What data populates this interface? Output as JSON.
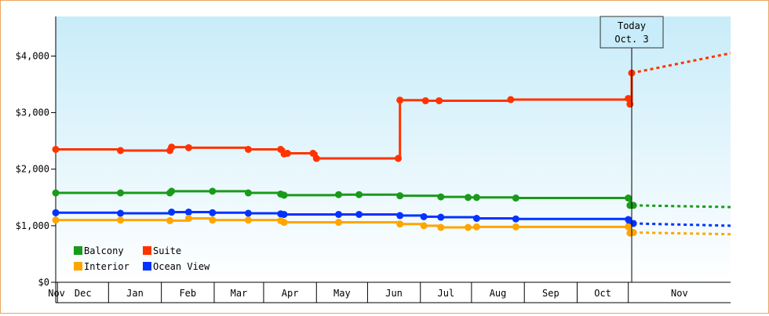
{
  "chart_data": {
    "type": "line",
    "y_ticks": [
      "$0",
      "$1,000",
      "$2,000",
      "$3,000",
      "$4,000"
    ],
    "y_tick_values": [
      0,
      1000,
      2000,
      3000,
      4000
    ],
    "ylim": [
      0,
      4700
    ],
    "month_labels": [
      "Nov",
      "Dec",
      "Jan",
      "Feb",
      "Mar",
      "Apr",
      "May",
      "Jun",
      "Jul",
      "Aug",
      "Sep",
      "Oct",
      "Nov"
    ],
    "x_range": [
      "2011-10-31",
      "2012-11-30"
    ],
    "today": {
      "date": "2012-10-03",
      "label_line1": "Today",
      "label_line2": "Oct. 3"
    },
    "legend": [
      {
        "name": "Balcony",
        "color": "#1a9a1a"
      },
      {
        "name": "Suite",
        "color": "#ff3300"
      },
      {
        "name": "Interior",
        "color": "#ffa500"
      },
      {
        "name": "Ocean View",
        "color": "#0033ff"
      }
    ],
    "series": [
      {
        "name": "Suite",
        "color": "#ff3300",
        "points": [
          [
            "2011-10-31",
            2350
          ],
          [
            "2011-12-08",
            2330
          ],
          [
            "2012-01-06",
            2330
          ],
          [
            "2012-01-07",
            2390
          ],
          [
            "2012-01-17",
            2380
          ],
          [
            "2012-02-21",
            2350
          ],
          [
            "2012-03-11",
            2350
          ],
          [
            "2012-03-13",
            2270
          ],
          [
            "2012-03-15",
            2280
          ],
          [
            "2012-03-30",
            2280
          ],
          [
            "2012-04-01",
            2190
          ],
          [
            "2012-05-19",
            2190
          ],
          [
            "2012-05-20",
            3220
          ],
          [
            "2012-06-04",
            3210
          ],
          [
            "2012-06-12",
            3210
          ],
          [
            "2012-07-24",
            3230
          ],
          [
            "2012-10-01",
            3250
          ],
          [
            "2012-10-02",
            3150
          ],
          [
            "2012-10-03",
            3700
          ]
        ],
        "projection": [
          [
            "2012-10-03",
            3700
          ],
          [
            "2012-11-30",
            4050
          ]
        ]
      },
      {
        "name": "Balcony",
        "color": "#1a9a1a",
        "points": [
          [
            "2011-10-31",
            1580
          ],
          [
            "2011-12-08",
            1580
          ],
          [
            "2012-01-06",
            1580
          ],
          [
            "2012-01-07",
            1610
          ],
          [
            "2012-01-31",
            1610
          ],
          [
            "2012-02-21",
            1580
          ],
          [
            "2012-03-11",
            1560
          ],
          [
            "2012-03-13",
            1540
          ],
          [
            "2012-04-14",
            1550
          ],
          [
            "2012-04-26",
            1550
          ],
          [
            "2012-05-20",
            1530
          ],
          [
            "2012-06-13",
            1510
          ],
          [
            "2012-06-29",
            1500
          ],
          [
            "2012-07-04",
            1500
          ],
          [
            "2012-07-27",
            1490
          ],
          [
            "2012-10-01",
            1490
          ],
          [
            "2012-10-02",
            1360
          ],
          [
            "2012-10-04",
            1360
          ]
        ],
        "projection": [
          [
            "2012-10-04",
            1360
          ],
          [
            "2012-11-30",
            1330
          ]
        ]
      },
      {
        "name": "Ocean View",
        "color": "#0033ff",
        "points": [
          [
            "2011-10-31",
            1230
          ],
          [
            "2011-12-08",
            1220
          ],
          [
            "2012-01-07",
            1240
          ],
          [
            "2012-01-17",
            1240
          ],
          [
            "2012-01-31",
            1230
          ],
          [
            "2012-02-21",
            1220
          ],
          [
            "2012-03-11",
            1210
          ],
          [
            "2012-03-13",
            1200
          ],
          [
            "2012-04-14",
            1200
          ],
          [
            "2012-04-26",
            1200
          ],
          [
            "2012-05-20",
            1180
          ],
          [
            "2012-06-03",
            1160
          ],
          [
            "2012-06-13",
            1150
          ],
          [
            "2012-07-04",
            1130
          ],
          [
            "2012-07-27",
            1120
          ],
          [
            "2012-10-01",
            1110
          ],
          [
            "2012-10-02",
            1040
          ],
          [
            "2012-10-04",
            1040
          ]
        ],
        "projection": [
          [
            "2012-10-04",
            1040
          ],
          [
            "2012-11-30",
            1000
          ]
        ]
      },
      {
        "name": "Interior",
        "color": "#ffa500",
        "points": [
          [
            "2011-10-31",
            1100
          ],
          [
            "2011-12-08",
            1100
          ],
          [
            "2012-01-06",
            1090
          ],
          [
            "2012-01-17",
            1130
          ],
          [
            "2012-01-31",
            1100
          ],
          [
            "2012-02-21",
            1100
          ],
          [
            "2012-03-11",
            1090
          ],
          [
            "2012-03-13",
            1060
          ],
          [
            "2012-04-14",
            1060
          ],
          [
            "2012-05-20",
            1030
          ],
          [
            "2012-06-03",
            1000
          ],
          [
            "2012-06-13",
            970
          ],
          [
            "2012-06-29",
            970
          ],
          [
            "2012-07-04",
            980
          ],
          [
            "2012-07-27",
            980
          ],
          [
            "2012-10-01",
            980
          ],
          [
            "2012-10-02",
            870
          ],
          [
            "2012-10-04",
            880
          ]
        ],
        "projection": [
          [
            "2012-10-04",
            880
          ],
          [
            "2012-11-30",
            850
          ]
        ]
      }
    ]
  }
}
